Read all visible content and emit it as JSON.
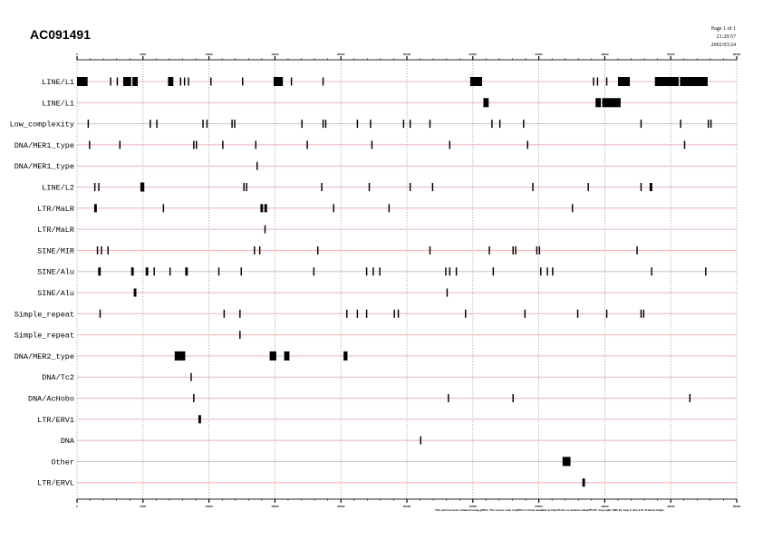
{
  "header": {
    "title": "AC091491",
    "page": "Page 1 of 1",
    "time": "21:29:57",
    "date": "2002/03/24"
  },
  "footer": {
    "credit": "This plot has been obtained using gifPlot. The source code of gifPlot is freely available at http://frodo.cs.ucdavis.edu/gifPLOT. Copyright 1999 by Joop F. Ahn & B. Frederic Gidge"
  },
  "colors": {
    "row_line": "#f0b4b4",
    "grid": "#aaaaaa",
    "feature": "#000000",
    "axis": "#555555"
  },
  "chart_data": {
    "type": "track",
    "title": "AC091491",
    "xlabel": "Position (bp)",
    "xlim": [
      0,
      50000
    ],
    "x_ticks": [
      0,
      5000,
      10000,
      15000,
      20000,
      25000,
      30000,
      35000,
      40000,
      45000,
      50000
    ],
    "grid": true,
    "rows": [
      {
        "label": "LINE/L1",
        "features": [
          [
            0,
            800
          ],
          [
            2500,
            2600
          ],
          [
            3000,
            3100
          ],
          [
            3500,
            4100
          ],
          [
            4200,
            4600
          ],
          [
            6900,
            7300
          ],
          [
            7800,
            7900
          ],
          [
            8100,
            8200
          ],
          [
            8400,
            8500
          ],
          [
            10100,
            10200
          ],
          [
            12500,
            12600
          ],
          [
            14900,
            15600
          ],
          [
            16200,
            16300
          ],
          [
            18600,
            18700
          ],
          [
            29800,
            30700
          ],
          [
            39100,
            39200
          ],
          [
            39400,
            39500
          ],
          [
            40100,
            40200
          ],
          [
            41000,
            41900
          ],
          [
            43800,
            45600
          ],
          [
            45700,
            47800
          ]
        ]
      },
      {
        "label": "LINE/L1",
        "features": [
          [
            30800,
            31200
          ],
          [
            39300,
            39700
          ],
          [
            39800,
            41200
          ]
        ]
      },
      {
        "label": "Low_complexity",
        "features": [
          [
            800,
            900
          ],
          [
            5500,
            5600
          ],
          [
            6000,
            6100
          ],
          [
            9500,
            9600
          ],
          [
            9800,
            9900
          ],
          [
            11700,
            11800
          ],
          [
            11900,
            12000
          ],
          [
            17000,
            17100
          ],
          [
            18600,
            18700
          ],
          [
            18800,
            18900
          ],
          [
            21200,
            21300
          ],
          [
            22200,
            22300
          ],
          [
            24700,
            24800
          ],
          [
            25200,
            25300
          ],
          [
            26700,
            26800
          ],
          [
            31400,
            31500
          ],
          [
            32000,
            32100
          ],
          [
            33800,
            33900
          ],
          [
            42700,
            42800
          ],
          [
            45700,
            45800
          ],
          [
            47800,
            47900
          ],
          [
            48000,
            48100
          ]
        ]
      },
      {
        "label": "DNA/MER1_type",
        "features": [
          [
            900,
            1000
          ],
          [
            3200,
            3300
          ],
          [
            8800,
            8900
          ],
          [
            9000,
            9100
          ],
          [
            11000,
            11100
          ],
          [
            13500,
            13600
          ],
          [
            17400,
            17500
          ],
          [
            22300,
            22400
          ],
          [
            28200,
            28300
          ],
          [
            34100,
            34200
          ],
          [
            46000,
            46100
          ]
        ]
      },
      {
        "label": "DNA/MER1_type",
        "features": [
          [
            13600,
            13700
          ]
        ]
      },
      {
        "label": "LINE/L2",
        "features": [
          [
            1300,
            1400
          ],
          [
            1600,
            1700
          ],
          [
            4800,
            5100
          ],
          [
            12600,
            12700
          ],
          [
            12800,
            12900
          ],
          [
            18500,
            18600
          ],
          [
            22100,
            22200
          ],
          [
            25200,
            25300
          ],
          [
            26900,
            27000
          ],
          [
            34500,
            34600
          ],
          [
            38700,
            38800
          ],
          [
            42700,
            42800
          ],
          [
            43400,
            43600
          ]
        ]
      },
      {
        "label": "LTR/MaLR",
        "features": [
          [
            1300,
            1500
          ],
          [
            6500,
            6600
          ],
          [
            13900,
            14100
          ],
          [
            14200,
            14400
          ],
          [
            19400,
            19500
          ],
          [
            23600,
            23700
          ],
          [
            37500,
            37600
          ]
        ]
      },
      {
        "label": "LTR/MaLR",
        "features": [
          [
            14200,
            14300
          ]
        ]
      },
      {
        "label": "SINE/MIR",
        "features": [
          [
            1500,
            1600
          ],
          [
            1800,
            1900
          ],
          [
            2300,
            2400
          ],
          [
            13400,
            13500
          ],
          [
            13800,
            13900
          ],
          [
            18200,
            18300
          ],
          [
            26700,
            26800
          ],
          [
            31200,
            31300
          ],
          [
            33000,
            33100
          ],
          [
            33200,
            33300
          ],
          [
            34800,
            34900
          ],
          [
            35000,
            35100
          ],
          [
            42400,
            42500
          ]
        ]
      },
      {
        "label": "SINE/Alu",
        "features": [
          [
            1600,
            1800
          ],
          [
            4100,
            4300
          ],
          [
            5200,
            5400
          ],
          [
            5800,
            5900
          ],
          [
            7000,
            7100
          ],
          [
            8200,
            8400
          ],
          [
            10700,
            10800
          ],
          [
            12400,
            12500
          ],
          [
            17900,
            18000
          ],
          [
            21900,
            22000
          ],
          [
            22400,
            22500
          ],
          [
            22900,
            23000
          ],
          [
            27900,
            28000
          ],
          [
            28200,
            28300
          ],
          [
            28700,
            28800
          ],
          [
            31500,
            31600
          ],
          [
            35100,
            35200
          ],
          [
            35600,
            35700
          ],
          [
            36000,
            36100
          ],
          [
            43500,
            43600
          ],
          [
            47600,
            47700
          ]
        ]
      },
      {
        "label": "SINE/Alu",
        "features": [
          [
            4300,
            4500
          ],
          [
            28000,
            28100
          ]
        ]
      },
      {
        "label": "Simple_repeat",
        "features": [
          [
            1700,
            1800
          ],
          [
            11100,
            11200
          ],
          [
            12300,
            12400
          ],
          [
            20400,
            20500
          ],
          [
            21200,
            21300
          ],
          [
            21900,
            22000
          ],
          [
            24000,
            24100
          ],
          [
            24300,
            24400
          ],
          [
            29400,
            29500
          ],
          [
            33900,
            34000
          ],
          [
            37900,
            38000
          ],
          [
            40100,
            40200
          ],
          [
            42700,
            42800
          ],
          [
            42900,
            43000
          ]
        ]
      },
      {
        "label": "Simple_repeat",
        "features": [
          [
            12300,
            12400
          ]
        ]
      },
      {
        "label": "DNA/MER2_type",
        "features": [
          [
            7400,
            8200
          ],
          [
            14600,
            15100
          ],
          [
            15700,
            16100
          ],
          [
            20200,
            20500
          ]
        ]
      },
      {
        "label": "DNA/Tc2",
        "features": [
          [
            8600,
            8700
          ]
        ]
      },
      {
        "label": "DNA/AcHobo",
        "features": [
          [
            8800,
            8900
          ],
          [
            28100,
            28200
          ],
          [
            33000,
            33100
          ],
          [
            46400,
            46500
          ]
        ]
      },
      {
        "label": "LTR/ERV1",
        "features": [
          [
            9200,
            9400
          ]
        ]
      },
      {
        "label": "DNA",
        "features": [
          [
            26000,
            26100
          ]
        ]
      },
      {
        "label": "Other",
        "features": [
          [
            36800,
            37400
          ]
        ]
      },
      {
        "label": "LTR/ERVL",
        "features": [
          [
            38300,
            38500
          ]
        ]
      }
    ]
  }
}
